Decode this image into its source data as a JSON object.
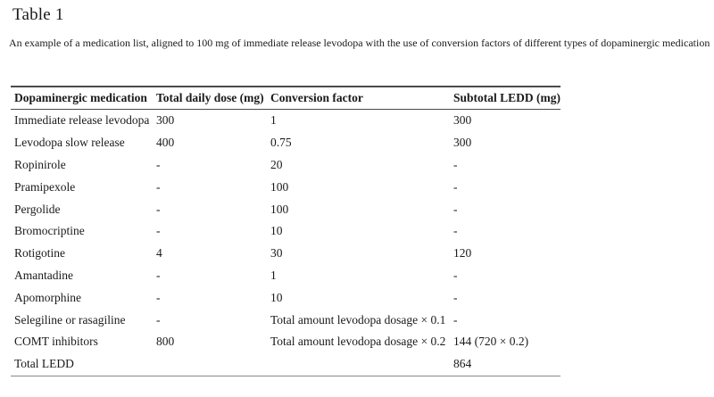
{
  "page": {
    "title": "Table 1",
    "caption": "An example of a medication list, aligned to 100 mg of immediate release levodopa with the use of conversion factors of different types of dopaminergic medication"
  },
  "colors": {
    "text": "#1a1a1a",
    "rule_dark": "#4a4a4a",
    "rule_light": "#8a8a8a",
    "background": "#ffffff"
  },
  "chart_data": {
    "type": "table",
    "title": "Table 1",
    "columns": [
      "Dopaminergic medication",
      "Total daily dose (mg)",
      "Conversion factor",
      "Subtotal LEDD (mg)"
    ],
    "rows": [
      [
        "Immediate release levodopa",
        "300",
        "1",
        "300"
      ],
      [
        "Levodopa slow release",
        "400",
        "0.75",
        "300"
      ],
      [
        "Ropinirole",
        "-",
        "20",
        "-"
      ],
      [
        "Pramipexole",
        "-",
        "100",
        "-"
      ],
      [
        "Pergolide",
        "-",
        "100",
        "-"
      ],
      [
        "Bromocriptine",
        "-",
        "10",
        "-"
      ],
      [
        "Rotigotine",
        "4",
        "30",
        "120"
      ],
      [
        "Amantadine",
        "-",
        "1",
        "-"
      ],
      [
        "Apomorphine",
        "-",
        "10",
        "-"
      ],
      [
        "Selegiline or rasagiline",
        "-",
        "Total amount levodopa dosage × 0.1",
        "-"
      ],
      [
        "COMT inhibitors",
        "800",
        "Total amount levodopa dosage × 0.2",
        "144 (720 × 0.2)"
      ],
      [
        "Total LEDD",
        "",
        "",
        "864"
      ]
    ]
  }
}
